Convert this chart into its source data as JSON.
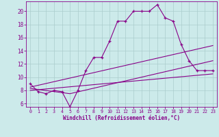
{
  "xlabel": "Windchill (Refroidissement éolien,°C)",
  "ylabel": "",
  "bg_color": "#cceaea",
  "grid_color": "#aacccc",
  "line_color": "#880088",
  "xlim": [
    -0.5,
    23.5
  ],
  "ylim": [
    5.5,
    21.5
  ],
  "yticks": [
    6,
    8,
    10,
    12,
    14,
    16,
    18,
    20
  ],
  "xticks": [
    0,
    1,
    2,
    3,
    4,
    5,
    6,
    7,
    8,
    9,
    10,
    11,
    12,
    13,
    14,
    15,
    16,
    17,
    18,
    19,
    20,
    21,
    22,
    23
  ],
  "line1_x": [
    0,
    1,
    2,
    3,
    4,
    5,
    6,
    7,
    8,
    9,
    10,
    11,
    12,
    13,
    14,
    15,
    16,
    17,
    18,
    19,
    20,
    21,
    22,
    23
  ],
  "line1_y": [
    9.0,
    7.8,
    7.5,
    8.0,
    7.8,
    5.5,
    8.0,
    11.0,
    13.0,
    13.0,
    15.5,
    18.5,
    18.5,
    20.0,
    20.0,
    20.0,
    21.0,
    19.0,
    18.5,
    15.0,
    12.5,
    11.0,
    11.0,
    11.0
  ],
  "line2_x": [
    0,
    23
  ],
  "line2_y": [
    8.5,
    14.8
  ],
  "line3_x": [
    0,
    23
  ],
  "line3_y": [
    8.0,
    10.5
  ],
  "line4_x": [
    0,
    5,
    23
  ],
  "line4_y": [
    8.3,
    7.5,
    12.5
  ],
  "marker": "+"
}
